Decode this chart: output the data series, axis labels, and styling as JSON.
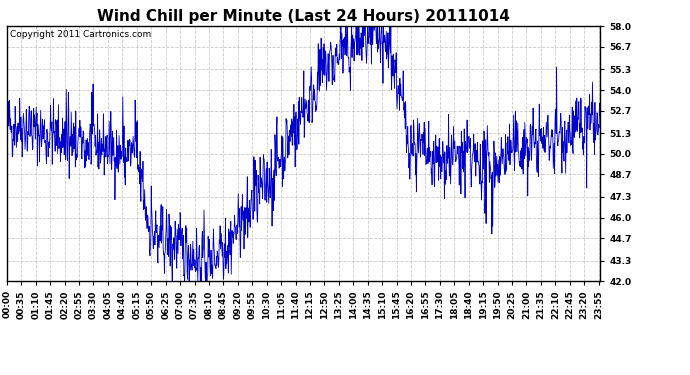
{
  "title": "Wind Chill per Minute (Last 24 Hours) 20111014",
  "copyright_text": "Copyright 2011 Cartronics.com",
  "ymin": 42.0,
  "ymax": 58.0,
  "ytick_values": [
    42.0,
    43.3,
    44.7,
    46.0,
    47.3,
    48.7,
    50.0,
    51.3,
    52.7,
    54.0,
    55.3,
    56.7,
    58.0
  ],
  "line_color": "#0000cc",
  "bg_color": "#ffffff",
  "plot_bg_color": "#ffffff",
  "grid_color": "#bbbbbb",
  "title_fontsize": 11,
  "copyright_fontsize": 6.5,
  "tick_fontsize": 6.5,
  "x_tick_labels": [
    "00:00",
    "00:35",
    "01:10",
    "01:45",
    "02:20",
    "02:55",
    "03:30",
    "04:05",
    "04:40",
    "05:15",
    "05:50",
    "06:25",
    "07:00",
    "07:35",
    "08:10",
    "08:45",
    "09:20",
    "09:55",
    "10:30",
    "11:05",
    "11:40",
    "12:15",
    "12:50",
    "13:25",
    "14:00",
    "14:35",
    "15:10",
    "15:45",
    "16:20",
    "16:55",
    "17:30",
    "18:05",
    "18:40",
    "19:15",
    "19:50",
    "20:25",
    "21:00",
    "21:35",
    "22:10",
    "22:45",
    "23:20",
    "23:55"
  ],
  "num_points": 1440,
  "seed": 42
}
